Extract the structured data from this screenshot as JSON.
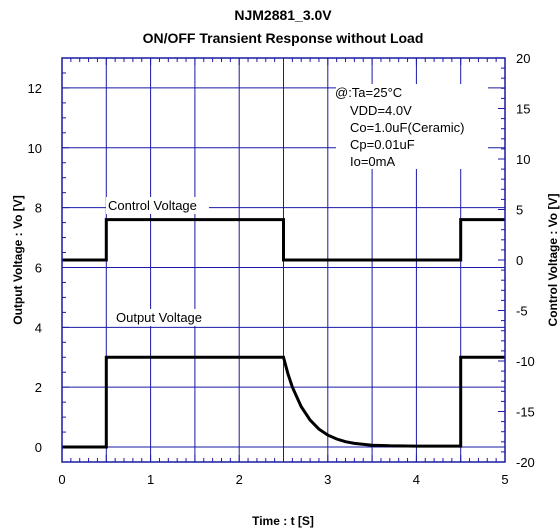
{
  "chart_data": {
    "type": "line",
    "title": "NJM2881_3.0V",
    "subtitle": "ON/OFF Transient Response without Load",
    "xlabel": "Time : t [S]",
    "ylabel_left": "Output Voltage : Vo [V]",
    "ylabel_right": "Control Voltage : Vo [V]",
    "xlim": [
      0,
      5
    ],
    "ylim_left": [
      -0.5,
      13
    ],
    "ylim_right": [
      -20,
      20
    ],
    "grid": true,
    "x_ticks": [
      "0",
      "1",
      "2",
      "3",
      "4",
      "5"
    ],
    "y_ticks_left": [
      "0",
      "2",
      "4",
      "6",
      "8",
      "10",
      "12"
    ],
    "y_ticks_right": [
      "-20",
      "-15",
      "-10",
      "-5",
      "0",
      "5",
      "10",
      "15",
      "20"
    ],
    "annotations": [
      "@:Ta=25°C",
      "VDD=4.0V",
      "Co=1.0uF(Ceramic)",
      "Cp=0.01uF",
      "Io=0mA"
    ],
    "series": [
      {
        "name": "Control Voltage",
        "axis": "right",
        "x": [
          0,
          0.5,
          0.5,
          2.5,
          2.5,
          4.5,
          4.5,
          5
        ],
        "y": [
          0,
          0,
          4,
          4,
          0,
          0,
          4,
          4
        ]
      },
      {
        "name": "Output Voltage",
        "axis": "left",
        "x": [
          0,
          0.5,
          0.5,
          2.5,
          2.55,
          2.6,
          2.7,
          2.8,
          2.9,
          3.0,
          3.1,
          3.2,
          3.3,
          3.5,
          3.7,
          4.0,
          4.5,
          4.5,
          5
        ],
        "y": [
          0,
          0,
          3,
          3,
          2.45,
          2.0,
          1.35,
          0.9,
          0.6,
          0.4,
          0.27,
          0.18,
          0.12,
          0.06,
          0.04,
          0.03,
          0.03,
          3,
          3
        ]
      }
    ]
  }
}
